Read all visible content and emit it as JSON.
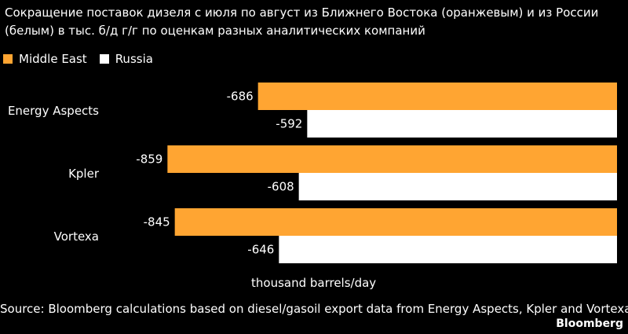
{
  "title": "Сокращение поставок дизеля с июля по август из Ближнего Востока (оранжевым) и из России (белым) в тыс. б/д г/г по оценкам разных аналитических компаний",
  "colors": {
    "background": "#000000",
    "middle_east": "#ffa532",
    "russia": "#ffffff",
    "text": "#ffffff"
  },
  "chart_data": {
    "type": "bar",
    "orientation": "horizontal",
    "categories": [
      "Energy Aspects",
      "Kpler",
      "Vortexa"
    ],
    "series": [
      {
        "name": "Middle East",
        "color": "#ffa532",
        "values": [
          -686,
          -859,
          -845
        ]
      },
      {
        "name": "Russia",
        "color": "#ffffff",
        "values": [
          -592,
          -608,
          -646
        ]
      }
    ],
    "xlabel": "thousand barrels/day",
    "xlim": [
      -900,
      0
    ],
    "legend": "top-left",
    "grid": false
  },
  "source": "Source: Bloomberg calculations based on diesel/gasoil export data from Energy Aspects, Kpler and Vortexa",
  "brand": "Bloomberg"
}
